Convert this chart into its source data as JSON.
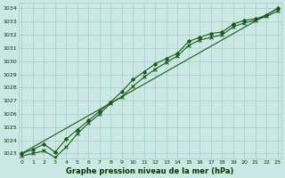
{
  "xlabel": "Graphe pression niveau de la mer (hPa)",
  "ylabel": "",
  "background_color": "#cbe8e5",
  "grid_color": "#a8ccc8",
  "line_color": "#1a5c1a",
  "text_color": "#003300",
  "x_ticks": [
    0,
    1,
    2,
    3,
    4,
    5,
    6,
    7,
    8,
    9,
    10,
    11,
    12,
    13,
    14,
    15,
    16,
    17,
    18,
    19,
    20,
    21,
    22,
    23
  ],
  "y_ticks": [
    1023,
    1024,
    1025,
    1026,
    1027,
    1028,
    1029,
    1030,
    1031,
    1032,
    1033,
    1034
  ],
  "ylim": [
    1022.6,
    1034.4
  ],
  "xlim": [
    -0.3,
    23.3
  ],
  "series": [
    {
      "x": [
        0,
        1,
        2,
        3,
        4,
        5,
        6,
        7,
        8,
        9,
        10,
        11,
        12,
        13,
        14,
        15,
        16,
        17,
        18,
        19,
        20,
        21,
        22,
        23
      ],
      "y": [
        1023.0,
        1023.3,
        1023.7,
        1023.1,
        1024.1,
        1024.8,
        1025.5,
        1026.2,
        1026.9,
        1027.7,
        1028.6,
        1029.2,
        1029.8,
        1030.2,
        1030.6,
        1031.5,
        1031.8,
        1032.1,
        1032.2,
        1032.8,
        1033.1,
        1033.2,
        1033.5,
        1034.0
      ],
      "marker": "D",
      "markersize": 2.0,
      "linewidth": 0.8
    },
    {
      "x": [
        0,
        1,
        2,
        3,
        4,
        5,
        6,
        7,
        8,
        9,
        10,
        11,
        12,
        13,
        14,
        15,
        16,
        17,
        18,
        19,
        20,
        21,
        22,
        23
      ],
      "y": [
        1022.8,
        1023.0,
        1023.2,
        1022.7,
        1023.5,
        1024.5,
        1025.3,
        1026.0,
        1026.8,
        1027.3,
        1028.1,
        1028.8,
        1029.4,
        1029.9,
        1030.4,
        1031.2,
        1031.6,
        1031.8,
        1032.0,
        1032.6,
        1032.9,
        1033.1,
        1033.4,
        1033.8
      ],
      "marker": "x",
      "markersize": 3.5,
      "linewidth": 0.8
    },
    {
      "x": [
        0,
        23
      ],
      "y": [
        1023.0,
        1034.0
      ],
      "marker": null,
      "markersize": 0,
      "linewidth": 0.8
    }
  ]
}
